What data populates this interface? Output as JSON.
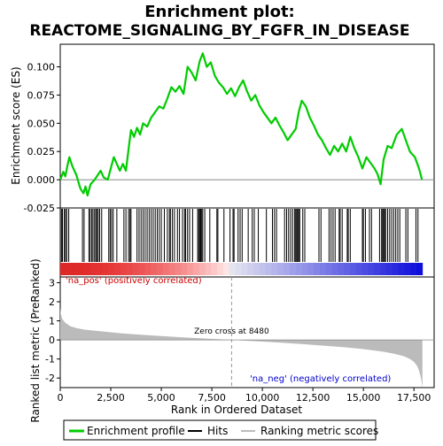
{
  "chart_data": {
    "type": "line",
    "title_line1": "Enrichment plot:",
    "title_line2": "REACTOME_SIGNALING_BY_FGFR_IN_DISEASE",
    "top_panel": {
      "ylabel": "Enrichment score (ES)",
      "ylim": [
        -0.025,
        0.12
      ],
      "yticks": [
        -0.025,
        0.0,
        0.025,
        0.05,
        0.075,
        0.1
      ],
      "ytick_labels": [
        "-0.025",
        "0.000",
        "0.025",
        "0.050",
        "0.075",
        "0.100"
      ],
      "line_color": "#00cc00",
      "es_profile": [
        [
          0,
          0.0
        ],
        [
          150,
          0.007
        ],
        [
          250,
          0.003
        ],
        [
          350,
          0.012
        ],
        [
          450,
          0.02
        ],
        [
          600,
          0.012
        ],
        [
          800,
          0.004
        ],
        [
          1000,
          -0.008
        ],
        [
          1150,
          -0.012
        ],
        [
          1250,
          -0.006
        ],
        [
          1350,
          -0.014
        ],
        [
          1500,
          -0.004
        ],
        [
          1700,
          0.0
        ],
        [
          1850,
          0.004
        ],
        [
          2000,
          0.008
        ],
        [
          2150,
          0.002
        ],
        [
          2350,
          0.0
        ],
        [
          2500,
          0.01
        ],
        [
          2650,
          0.02
        ],
        [
          2800,
          0.014
        ],
        [
          2950,
          0.008
        ],
        [
          3100,
          0.014
        ],
        [
          3250,
          0.008
        ],
        [
          3400,
          0.03
        ],
        [
          3500,
          0.044
        ],
        [
          3650,
          0.038
        ],
        [
          3800,
          0.046
        ],
        [
          3950,
          0.04
        ],
        [
          4100,
          0.05
        ],
        [
          4300,
          0.047
        ],
        [
          4500,
          0.055
        ],
        [
          4700,
          0.06
        ],
        [
          4900,
          0.065
        ],
        [
          5100,
          0.063
        ],
        [
          5300,
          0.072
        ],
        [
          5500,
          0.082
        ],
        [
          5700,
          0.078
        ],
        [
          5900,
          0.083
        ],
        [
          6100,
          0.076
        ],
        [
          6300,
          0.1
        ],
        [
          6500,
          0.095
        ],
        [
          6700,
          0.088
        ],
        [
          6900,
          0.105
        ],
        [
          7050,
          0.112
        ],
        [
          7250,
          0.1
        ],
        [
          7450,
          0.104
        ],
        [
          7650,
          0.092
        ],
        [
          7850,
          0.086
        ],
        [
          8050,
          0.082
        ],
        [
          8250,
          0.076
        ],
        [
          8450,
          0.081
        ],
        [
          8650,
          0.074
        ],
        [
          8850,
          0.082
        ],
        [
          9050,
          0.088
        ],
        [
          9250,
          0.078
        ],
        [
          9450,
          0.07
        ],
        [
          9650,
          0.075
        ],
        [
          9850,
          0.066
        ],
        [
          10050,
          0.06
        ],
        [
          10250,
          0.055
        ],
        [
          10450,
          0.05
        ],
        [
          10650,
          0.055
        ],
        [
          10850,
          0.048
        ],
        [
          11050,
          0.042
        ],
        [
          11250,
          0.035
        ],
        [
          11450,
          0.04
        ],
        [
          11650,
          0.045
        ],
        [
          11800,
          0.06
        ],
        [
          11950,
          0.07
        ],
        [
          12150,
          0.065
        ],
        [
          12350,
          0.055
        ],
        [
          12550,
          0.048
        ],
        [
          12750,
          0.04
        ],
        [
          12950,
          0.035
        ],
        [
          13150,
          0.028
        ],
        [
          13350,
          0.022
        ],
        [
          13550,
          0.03
        ],
        [
          13750,
          0.025
        ],
        [
          13950,
          0.032
        ],
        [
          14150,
          0.025
        ],
        [
          14350,
          0.038
        ],
        [
          14550,
          0.028
        ],
        [
          14750,
          0.02
        ],
        [
          14950,
          0.01
        ],
        [
          15150,
          0.02
        ],
        [
          15350,
          0.015
        ],
        [
          15550,
          0.01
        ],
        [
          15700,
          0.005
        ],
        [
          15850,
          -0.004
        ],
        [
          16000,
          0.018
        ],
        [
          16200,
          0.03
        ],
        [
          16400,
          0.028
        ],
        [
          16650,
          0.04
        ],
        [
          16900,
          0.045
        ],
        [
          17100,
          0.035
        ],
        [
          17300,
          0.025
        ],
        [
          17550,
          0.02
        ],
        [
          17750,
          0.01
        ],
        [
          17900,
          0.0
        ]
      ]
    },
    "hits_panel": {
      "hit_positions": [
        60,
        110,
        200,
        260,
        320,
        420,
        1100,
        1180,
        1420,
        1480,
        1560,
        1620,
        1700,
        1760,
        1820,
        1880,
        1950,
        2050,
        2400,
        2470,
        2540,
        2620,
        2800,
        3150,
        3250,
        3380,
        3450,
        3500,
        3800,
        3900,
        4000,
        4100,
        4200,
        4300,
        4400,
        4500,
        4600,
        4700,
        4800,
        4900,
        5000,
        5150,
        5300,
        5400,
        5450,
        5550,
        5650,
        5800,
        5900,
        6050,
        6150,
        6200,
        6300,
        6400,
        6550,
        6800,
        6850,
        6900,
        6950,
        7000,
        7050,
        7150,
        7400,
        7750,
        7800,
        8100,
        8400,
        8550,
        8600,
        8800,
        8900,
        9000,
        9300,
        9500,
        9600,
        9800,
        10200,
        10500,
        10600,
        10700,
        11100,
        11200,
        11300,
        11400,
        11500,
        11600,
        11650,
        11700,
        11750,
        11800,
        11850,
        12000,
        12100,
        12800,
        12900,
        13300,
        13400,
        13500,
        13600,
        13800,
        13850,
        13950,
        14200,
        14250,
        14350,
        14950,
        15000,
        15100,
        15300,
        15400,
        15800,
        15900,
        15950,
        16000,
        16050,
        16100,
        16200,
        16300,
        16400,
        16500,
        16600,
        16700,
        16800,
        17100,
        17200,
        17600,
        17700
      ]
    },
    "bottom_panel": {
      "ylabel": "Ranked list metric (PreRanked)",
      "ylim": [
        -2.5,
        3.3
      ],
      "yticks": [
        -2,
        -1,
        0,
        1,
        2,
        3
      ],
      "ytick_labels": [
        "-2",
        "-1",
        "0",
        "1",
        "2",
        "3"
      ],
      "metric_profile": [
        [
          0,
          1.7
        ],
        [
          30,
          1.35
        ],
        [
          100,
          1.1
        ],
        [
          250,
          0.9
        ],
        [
          500,
          0.72
        ],
        [
          800,
          0.62
        ],
        [
          1200,
          0.54
        ],
        [
          2000,
          0.45
        ],
        [
          3000,
          0.35
        ],
        [
          4000,
          0.27
        ],
        [
          5000,
          0.2
        ],
        [
          6000,
          0.14
        ],
        [
          7000,
          0.08
        ],
        [
          8000,
          0.03
        ],
        [
          8480,
          0.0
        ],
        [
          9000,
          -0.03
        ],
        [
          10000,
          -0.09
        ],
        [
          11000,
          -0.15
        ],
        [
          12000,
          -0.22
        ],
        [
          13000,
          -0.3
        ],
        [
          14000,
          -0.38
        ],
        [
          15000,
          -0.48
        ],
        [
          15500,
          -0.55
        ],
        [
          16000,
          -0.62
        ],
        [
          16500,
          -0.72
        ],
        [
          17000,
          -0.85
        ],
        [
          17300,
          -1.0
        ],
        [
          17500,
          -1.15
        ],
        [
          17650,
          -1.35
        ],
        [
          17750,
          -1.6
        ],
        [
          17850,
          -2.0
        ],
        [
          17920,
          -2.5
        ]
      ],
      "zero_cross_label": "Zero cross at 8480",
      "zero_cross": 8480,
      "pos_label": "'na_pos' (positively correlated)",
      "neg_label": "'na_neg' (negatively correlated)",
      "pos_color": "#cc0000",
      "neg_color": "#0000cc"
    },
    "xaxis": {
      "xlabel": "Rank in Ordered Dataset",
      "xlim": [
        0,
        18500
      ],
      "xticks": [
        0,
        2500,
        5000,
        7500,
        10000,
        12500,
        15000,
        17500
      ],
      "xtick_labels": [
        "0",
        "2,500",
        "5,000",
        "7,500",
        "10,000",
        "12,500",
        "15,000",
        "17,500"
      ],
      "n_genes": 17920
    },
    "legend": {
      "items": [
        {
          "label": "Enrichment profile",
          "color": "#00cc00"
        },
        {
          "label": "Hits",
          "color": "#000000"
        },
        {
          "label": "Ranking metric scores",
          "color": "#bbbbbb"
        }
      ]
    }
  }
}
